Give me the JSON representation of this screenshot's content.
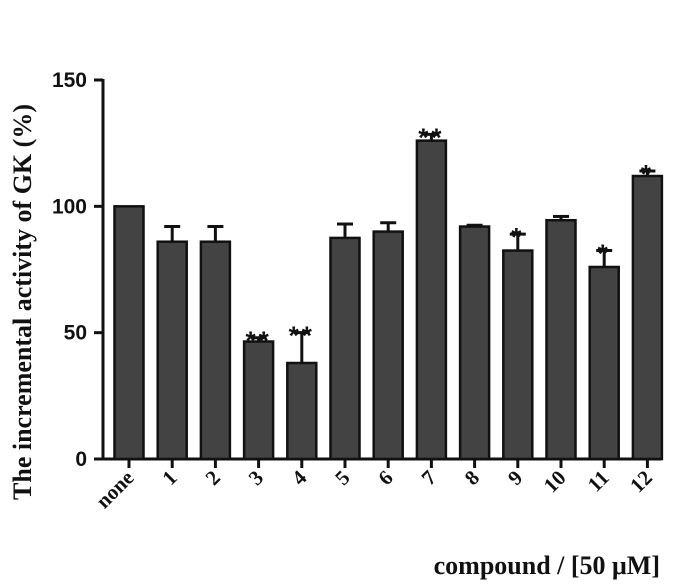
{
  "chart_data": {
    "type": "bar",
    "title": "",
    "ylabel": "The incremental activity of GK (%)",
    "xlabel": "compound / [50 μM]",
    "ylim": [
      0,
      150
    ],
    "yticks": [
      0,
      50,
      100,
      150
    ],
    "categories": [
      "none",
      "1",
      "2",
      "3",
      "4",
      "5",
      "6",
      "7",
      "8",
      "9",
      "10",
      "11",
      "12"
    ],
    "values": [
      100,
      86,
      86,
      46.5,
      38,
      87.5,
      90,
      126,
      92,
      82.5,
      94.5,
      76,
      112
    ],
    "errors": [
      0,
      6,
      6,
      1.5,
      12,
      5.5,
      3.5,
      2.5,
      0.5,
      6.5,
      1.5,
      6.5,
      2
    ],
    "significance": [
      "",
      "",
      "",
      "**",
      "**",
      "",
      "",
      "**",
      "",
      "*",
      "",
      "*",
      "*"
    ],
    "bar_color": "#434343",
    "edge_color": "#111111",
    "grid": false
  }
}
